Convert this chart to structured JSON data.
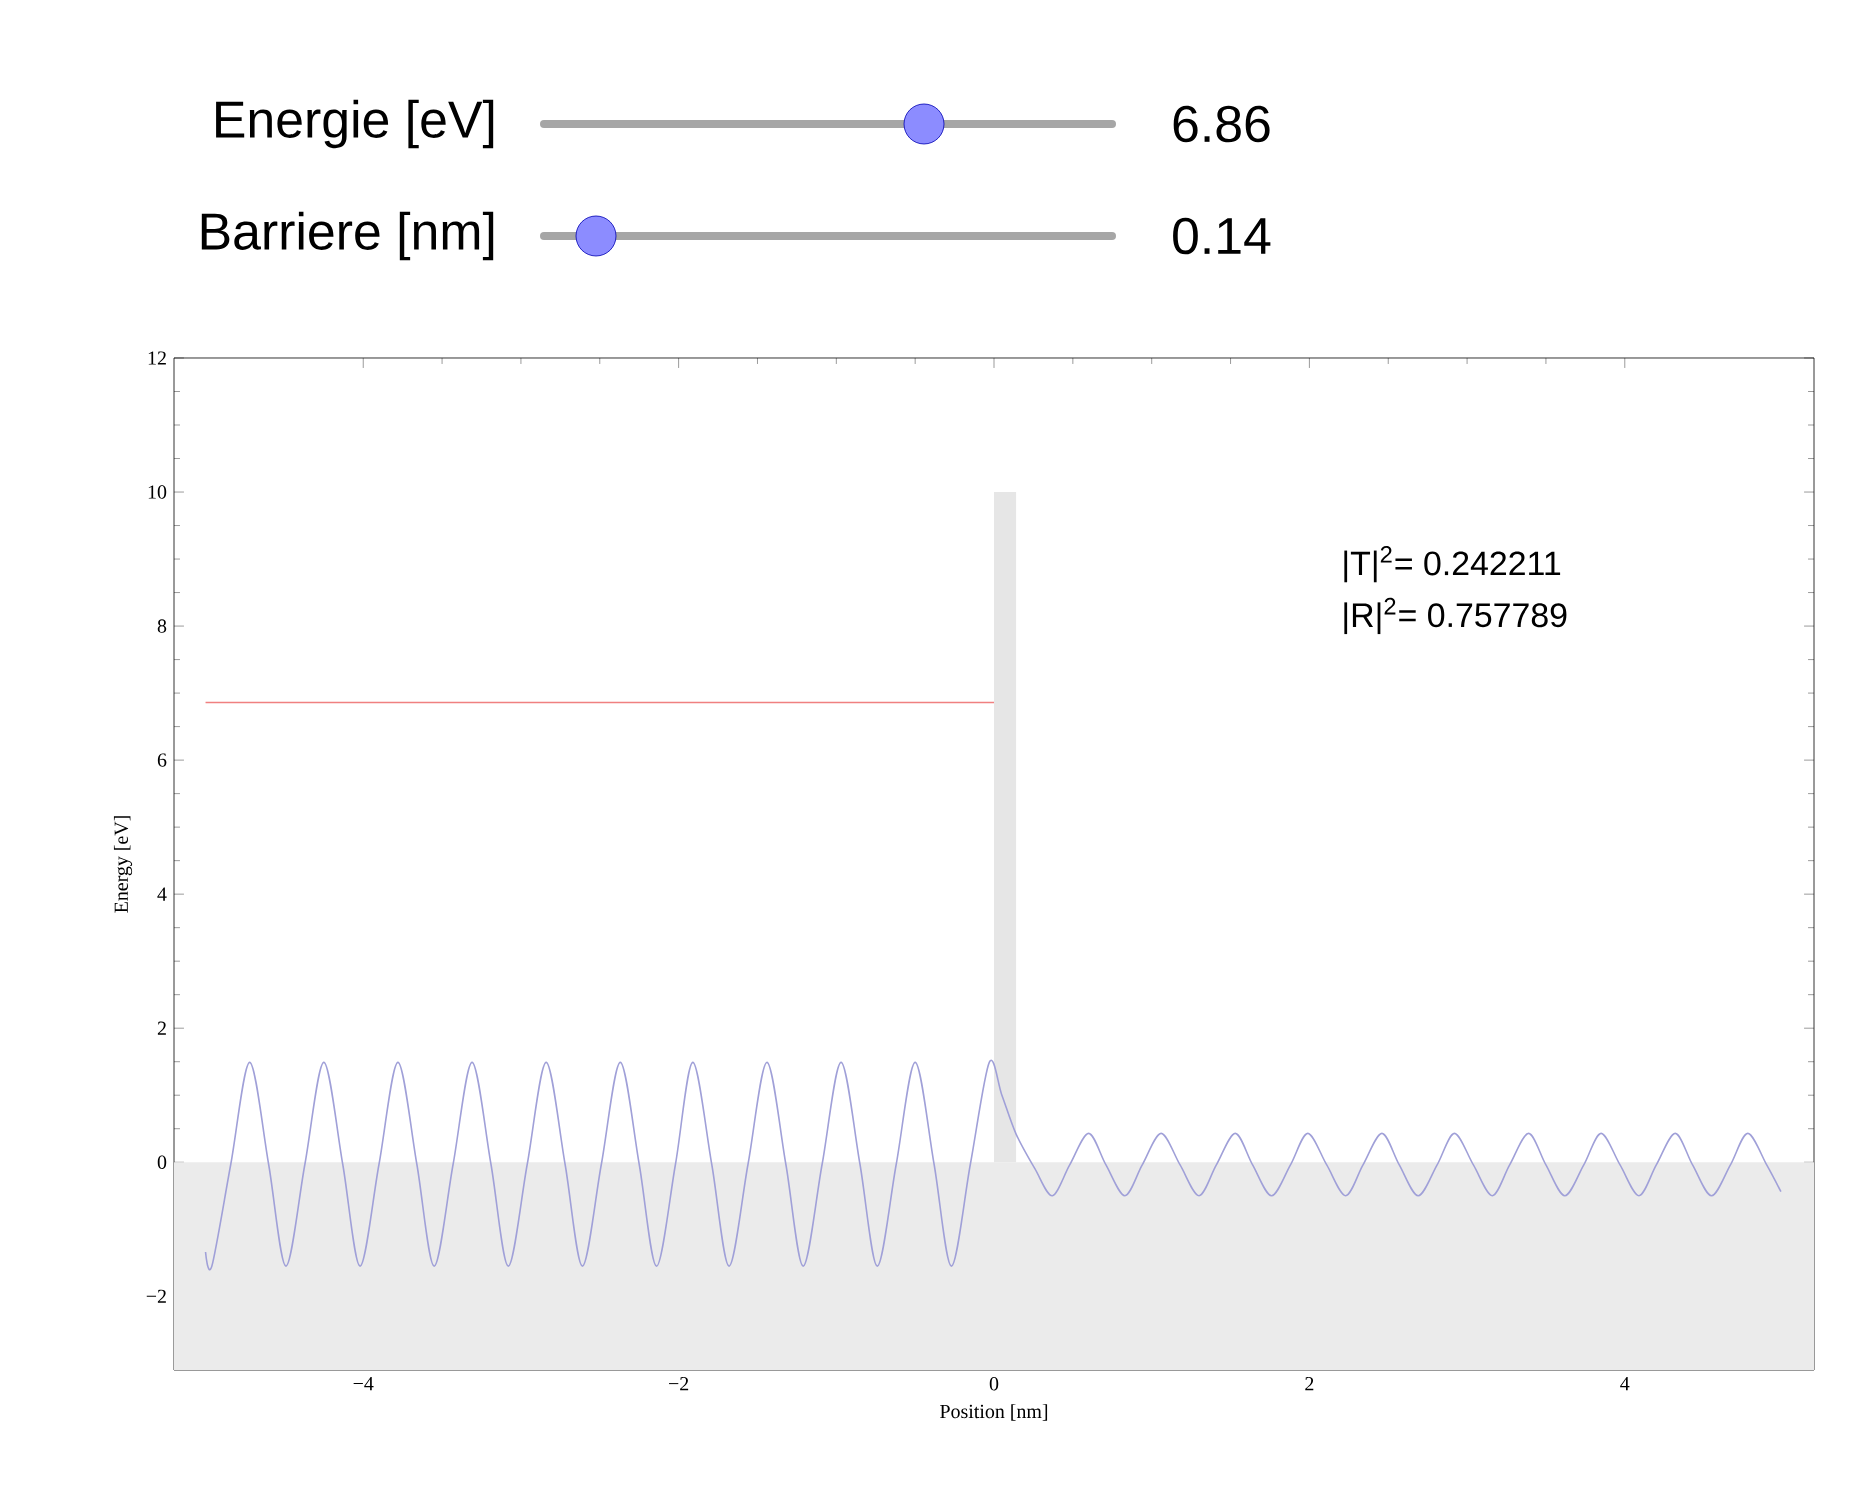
{
  "chart_data": {
    "type": "line",
    "xlabel": "Position [nm]",
    "ylabel": "Energy [eV]",
    "xlim": [
      -5.2,
      5.2
    ],
    "ylim": [
      -3.1,
      12
    ],
    "xticks": [
      {
        "value": -4,
        "label": "−4"
      },
      {
        "value": -2,
        "label": "−2"
      },
      0,
      2,
      4
    ],
    "yticks": [
      {
        "value": -2,
        "label": "−2"
      },
      0,
      2,
      4,
      6,
      8,
      10,
      12
    ],
    "grid": false,
    "legend": false,
    "bands": [
      {
        "axis": "y",
        "from": -3.1,
        "to": 0,
        "color": "#ebebeb"
      }
    ],
    "series": [
      {
        "type": "area",
        "color": "#e6e6e6",
        "x": [
          -5,
          0,
          0,
          0.14,
          0.14,
          5
        ],
        "values": [
          0,
          0,
          10,
          10,
          0,
          0
        ]
      },
      {
        "type": "line",
        "color": "#f08080",
        "x": [
          -5,
          0
        ],
        "values": [
          6.86,
          6.86
        ]
      },
      {
        "color": "#a0a0d8",
        "x": [
          -5.0,
          -4.96,
          -4.84,
          -4.72,
          -4.6,
          -4.49,
          -4.37,
          -4.25,
          -4.13,
          -4.02,
          -3.9,
          -3.78,
          -3.66,
          -3.55,
          -3.43,
          -3.31,
          -3.19,
          -3.08,
          -2.96,
          -2.84,
          -2.72,
          -2.61,
          -2.49,
          -2.37,
          -2.25,
          -2.14,
          -2.02,
          -1.91,
          -1.79,
          -1.68,
          -1.56,
          -1.44,
          -1.32,
          -1.21,
          -1.09,
          -0.97,
          -0.85,
          -0.74,
          -0.62,
          -0.5,
          -0.38,
          -0.27,
          -0.15,
          -0.03,
          0.05,
          0.14,
          0.26,
          0.37,
          0.48,
          0.6,
          0.71,
          0.83,
          0.94,
          1.06,
          1.18,
          1.3,
          1.41,
          1.53,
          1.64,
          1.76,
          1.88,
          1.99,
          2.11,
          2.23,
          2.34,
          2.46,
          2.57,
          2.69,
          2.81,
          2.92,
          3.04,
          3.16,
          3.27,
          3.39,
          3.5,
          3.62,
          3.74,
          3.85,
          3.97,
          4.09,
          4.2,
          4.32,
          4.43,
          4.55,
          4.67,
          4.78,
          4.9,
          4.99
        ],
        "values": [
          -1.34,
          -1.55,
          -0.03,
          1.49,
          -0.03,
          -1.55,
          -0.03,
          1.49,
          -0.03,
          -1.55,
          -0.03,
          1.49,
          -0.03,
          -1.55,
          -0.03,
          1.49,
          -0.03,
          -1.55,
          -0.03,
          1.49,
          -0.03,
          -1.55,
          -0.03,
          1.49,
          -0.03,
          -1.55,
          -0.03,
          1.49,
          -0.03,
          -1.55,
          -0.03,
          1.49,
          -0.03,
          -1.55,
          -0.03,
          1.49,
          -0.03,
          -1.55,
          -0.03,
          1.49,
          -0.03,
          -1.55,
          -0.03,
          1.49,
          1.0,
          0.42,
          -0.1,
          -0.5,
          -0.04,
          0.43,
          -0.04,
          -0.5,
          -0.04,
          0.43,
          -0.04,
          -0.5,
          -0.04,
          0.43,
          -0.04,
          -0.5,
          -0.04,
          0.43,
          -0.04,
          -0.5,
          -0.04,
          0.43,
          -0.04,
          -0.5,
          -0.04,
          0.43,
          -0.04,
          -0.5,
          -0.04,
          0.43,
          -0.04,
          -0.5,
          -0.04,
          0.43,
          -0.04,
          -0.5,
          -0.04,
          0.43,
          -0.04,
          -0.5,
          -0.04,
          0.43,
          -0.04,
          -0.44
        ]
      }
    ],
    "annotations": [
      "Energie [eV]",
      "6.86",
      "Barriere [nm]",
      "0.14",
      "|T|$^{2}$= 0.242211",
      "|R|$^{2}$= 0.757789"
    ]
  }
}
